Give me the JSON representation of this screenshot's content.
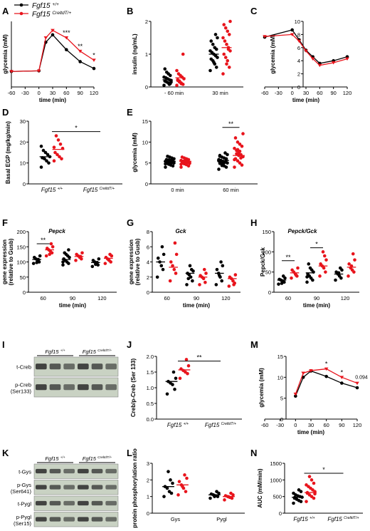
{
  "legend": [
    {
      "gene": "Fgf15",
      "sup": "+/+",
      "color": "#000000"
    },
    {
      "gene": "Fgf15",
      "sup": "CreltdT/+",
      "color": "#e8141c"
    }
  ],
  "colors": {
    "wt": "#000000",
    "ko": "#e8141c",
    "blot_bg": "#c9d2c3"
  },
  "chart_data": [
    {
      "panel": "A",
      "type": "line",
      "xlabel": "time (min)",
      "ylabel": "glycemia (mM)",
      "xlim": [
        -60,
        120
      ],
      "xticks": [
        -60,
        -30,
        0,
        30,
        60,
        90,
        120
      ],
      "yticks": [],
      "series": [
        {
          "name": "Fgf15 +/+",
          "x": [
            -60,
            0,
            15,
            30,
            60,
            90,
            120
          ],
          "y": [
            5.2,
            5.4,
            15.0,
            17.5,
            12.5,
            8.5,
            6.2
          ]
        },
        {
          "name": "Fgf15 CreltdT/+",
          "x": [
            -60,
            0,
            15,
            30,
            60,
            90,
            120
          ],
          "y": [
            5.2,
            5.4,
            16.5,
            19.0,
            16.5,
            12.0,
            9.0
          ]
        }
      ],
      "annotations": [
        {
          "x": 60,
          "text": "***"
        },
        {
          "x": 90,
          "text": "**"
        },
        {
          "x": 120,
          "text": "*"
        }
      ]
    },
    {
      "panel": "B",
      "type": "scatter",
      "ylabel": "insulin (ng/mL)",
      "ylim": [
        0,
        2
      ],
      "yticks": [
        0,
        1,
        2
      ],
      "categories": [
        "- 60 min",
        "30 min"
      ],
      "wt": [
        [
          0.05,
          0.1,
          0.12,
          0.15,
          0.18,
          0.2,
          0.22,
          0.25,
          0.28,
          0.3,
          0.35,
          0.4,
          0.45,
          0.55,
          0.15,
          0.08
        ],
        [
          0.5,
          0.6,
          0.7,
          0.8,
          0.85,
          0.9,
          0.95,
          1.0,
          1.05,
          1.1,
          1.15,
          1.2,
          1.3,
          1.4,
          1.5,
          1.6,
          0.75
        ]
      ],
      "ko": [
        [
          0.05,
          0.08,
          0.1,
          0.15,
          0.2,
          0.25,
          0.3,
          0.35,
          0.4,
          0.5,
          1.0,
          0.12,
          0.18,
          0.22
        ],
        [
          0.4,
          0.6,
          0.8,
          0.9,
          1.0,
          1.1,
          1.2,
          1.3,
          1.4,
          1.5,
          1.6,
          1.7,
          1.8,
          1.9,
          2.0,
          1.15,
          0.7
        ]
      ],
      "means": [
        [
          0.22,
          0.28
        ],
        [
          1.0,
          1.2
        ]
      ]
    },
    {
      "panel": "C",
      "type": "line",
      "xlabel": "time (min)",
      "ylabel": "glycemia (mM)",
      "xlim": [
        -60,
        120
      ],
      "ylim": [
        0,
        10
      ],
      "xticks": [
        -60,
        -30,
        0,
        30,
        60,
        90,
        120
      ],
      "yticks": [
        0,
        2,
        4,
        6,
        8,
        10
      ],
      "series": [
        {
          "name": "Fgf15 +/+",
          "x": [
            -60,
            0,
            15,
            30,
            45,
            60,
            90,
            120
          ],
          "y": [
            7.6,
            8.7,
            7.2,
            5.6,
            4.6,
            3.6,
            4.0,
            4.6
          ]
        },
        {
          "name": "Fgf15 CreltdT/+",
          "x": [
            -60,
            0,
            15,
            30,
            45,
            60,
            90,
            120
          ],
          "y": [
            7.7,
            8.0,
            7.0,
            5.5,
            4.3,
            3.3,
            3.7,
            4.3
          ]
        }
      ]
    },
    {
      "panel": "D",
      "type": "scatter",
      "ylabel": "Basal EGP (mg/kg/min)",
      "ylim": [
        0,
        30
      ],
      "yticks": [
        0,
        10,
        20,
        30
      ],
      "categories": [
        "Fgf15 +/+",
        "Fgf15 CreltdT/+"
      ],
      "wt": [
        [
          8,
          10,
          11,
          12,
          12.5,
          13,
          14,
          15,
          16,
          18
        ]
      ],
      "ko": [
        [
          11,
          12,
          13,
          14,
          15,
          17,
          19,
          21,
          23,
          17.5
        ]
      ],
      "means": [
        [
          13,
          16.5
        ]
      ],
      "annotations": [
        {
          "text": "*"
        }
      ]
    },
    {
      "panel": "E",
      "type": "scatter",
      "ylabel": "glycemia (mM)",
      "ylim": [
        0,
        15
      ],
      "yticks": [
        0,
        5,
        10,
        15
      ],
      "categories": [
        "0 min",
        "60 min"
      ],
      "wt": [
        [
          4,
          4.3,
          4.5,
          4.7,
          4.9,
          5.0,
          5.1,
          5.2,
          5.3,
          5.4,
          5.5,
          5.6,
          5.7,
          5.8,
          6.0,
          6.2,
          6.4,
          6.6,
          4.8,
          5.25,
          5.45,
          5.65,
          5.15
        ],
        [
          3.5,
          4.0,
          4.3,
          4.6,
          4.9,
          5.0,
          5.2,
          5.4,
          5.6,
          5.8,
          6.0,
          6.2,
          6.4,
          6.6,
          7.0,
          7.4,
          4.8,
          5.3,
          5.5,
          5.7,
          5.1,
          4.4,
          6.8
        ]
      ],
      "ko": [
        [
          4.0,
          4.3,
          4.6,
          4.8,
          5.0,
          5.1,
          5.2,
          5.3,
          5.4,
          5.6,
          5.8,
          6.0,
          6.2,
          6.4,
          4.9,
          5.45,
          5.65,
          5.25,
          4.7,
          5.15,
          5.55
        ],
        [
          4.0,
          4.5,
          5.0,
          5.5,
          6.0,
          6.5,
          7.0,
          7.5,
          8.0,
          8.5,
          9.0,
          9.5,
          10.0,
          11.0,
          12.0,
          6.2,
          6.8,
          7.2,
          5.8,
          6.6,
          7.8,
          8.2
        ]
      ],
      "means": [
        [
          5.4,
          5.4
        ],
        [
          5.6,
          6.8
        ]
      ],
      "annotations": [
        {
          "text": "**"
        }
      ]
    },
    {
      "panel": "F",
      "type": "scatter",
      "title": "Pepck",
      "xlabel": "time (min)",
      "ylabel": "gene expression (relative to Gusb)",
      "ylim": [
        0,
        200
      ],
      "yticks": [
        0,
        50,
        100,
        150,
        200
      ],
      "categories": [
        "60",
        "90",
        "120"
      ],
      "wt": [
        [
          95,
          100,
          105,
          110,
          115,
          120,
          108,
          98
        ],
        [
          90,
          95,
          100,
          105,
          110,
          115,
          120,
          125,
          130,
          100,
          140
        ],
        [
          85,
          90,
          95,
          100,
          105,
          110,
          98,
          92
        ]
      ],
      "ko": [
        [
          120,
          130,
          135,
          140,
          145,
          150,
          160,
          125
        ],
        [
          105,
          110,
          115,
          120,
          125,
          130,
          118
        ],
        [
          95,
          100,
          105,
          110,
          115,
          120,
          125,
          108
        ]
      ],
      "means": [
        [
          108,
          140
        ],
        [
          108,
          118
        ],
        [
          98,
          112
        ]
      ],
      "annotations": [
        {
          "text": "**"
        }
      ]
    },
    {
      "panel": "G",
      "type": "scatter",
      "title": "Gck",
      "xlabel": "time (min)",
      "ylabel": "gene expression (relative to Gusb)",
      "ylim": [
        0,
        8
      ],
      "yticks": [
        0,
        2,
        4,
        6,
        8
      ],
      "categories": [
        "60",
        "90",
        "120"
      ],
      "wt": [
        [
          2.0,
          3.0,
          3.5,
          4.0,
          4.5,
          5.0,
          6.0
        ],
        [
          1.0,
          1.5,
          2.0,
          2.3,
          2.5,
          2.8,
          3.0,
          3.5,
          1.8
        ],
        [
          1.0,
          1.5,
          2.0,
          2.5,
          3.0,
          3.5,
          4.0,
          2.2
        ]
      ],
      "ko": [
        [
          1.5,
          2.5,
          3.0,
          3.5,
          4.0,
          5.0,
          6.5
        ],
        [
          1.0,
          1.3,
          1.8,
          2.0,
          2.2,
          2.5,
          3.0
        ],
        [
          0.8,
          1.2,
          1.5,
          1.8,
          2.0,
          2.3,
          1.0
        ]
      ],
      "means": [
        [
          4.0,
          3.3
        ],
        [
          2.5,
          2.0
        ],
        [
          2.5,
          1.8
        ]
      ]
    },
    {
      "panel": "H",
      "type": "scatter",
      "title": "Pepck/Gck",
      "xlabel": "time (min)",
      "ylabel": "Pepck/Gck",
      "ylim": [
        0,
        150
      ],
      "yticks": [
        0,
        50,
        100,
        150
      ],
      "categories": [
        "60",
        "90",
        "120"
      ],
      "wt": [
        [
          20,
          25,
          28,
          30,
          32,
          35,
          40,
          22
        ],
        [
          25,
          30,
          35,
          40,
          45,
          50,
          55,
          60,
          70,
          38
        ],
        [
          30,
          35,
          40,
          45,
          50,
          55,
          60,
          48
        ]
      ],
      "ko": [
        [
          35,
          40,
          45,
          50,
          55,
          60,
          42
        ],
        [
          40,
          50,
          60,
          65,
          70,
          80,
          90,
          100
        ],
        [
          40,
          50,
          55,
          60,
          70,
          80,
          95,
          65
        ]
      ],
      "means": [
        [
          30,
          48
        ],
        [
          48,
          65
        ],
        [
          45,
          62
        ]
      ],
      "annotations": [
        {
          "text": "**"
        },
        {
          "text": "*"
        }
      ]
    },
    {
      "panel": "J",
      "type": "scatter",
      "ylabel": "Creb/p-Creb (Ser 133)",
      "ylim": [
        0,
        2
      ],
      "yticks": [
        0.0,
        0.5,
        1.0,
        1.5,
        2.0
      ],
      "categories": [
        "Fgf15 +/+",
        "Fgf15 CreltdT/+"
      ],
      "wt": [
        [
          0.8,
          0.95,
          1.1,
          1.15,
          1.2,
          1.3,
          1.5
        ]
      ],
      "ko": [
        [
          1.3,
          1.45,
          1.5,
          1.55,
          1.6,
          1.7,
          1.9
        ]
      ],
      "means": [
        [
          1.2,
          1.57
        ]
      ],
      "annotations": [
        {
          "text": "**"
        }
      ]
    },
    {
      "panel": "M",
      "type": "line",
      "xlabel": "time (min)",
      "ylabel": "glycemia (mM)",
      "xlim": [
        -60,
        120
      ],
      "ylim": [
        0,
        15
      ],
      "xticks": [
        -60,
        -30,
        0,
        30,
        60,
        90,
        120
      ],
      "yticks": [
        0,
        5,
        10,
        15
      ],
      "series": [
        {
          "name": "Fgf15 +/+",
          "x": [
            0,
            15,
            30,
            60,
            90,
            120
          ],
          "y": [
            5.5,
            10.0,
            11.5,
            10.2,
            8.6,
            7.5
          ]
        },
        {
          "name": "Fgf15 CreltdT/+",
          "x": [
            0,
            15,
            30,
            60,
            90,
            120
          ],
          "y": [
            6.0,
            11.0,
            11.6,
            12.0,
            10.0,
            8.6
          ]
        }
      ],
      "annotations": [
        {
          "x": 60,
          "text": "*"
        },
        {
          "x": 90,
          "text": "*"
        },
        {
          "x": 120,
          "text": "0.094"
        }
      ]
    },
    {
      "panel": "L",
      "type": "scatter",
      "ylabel": "protein phosphorylation ratio",
      "ylim": [
        0,
        3
      ],
      "yticks": [
        0,
        1,
        2,
        3
      ],
      "categories": [
        "Gys",
        "Pygl"
      ],
      "wt": [
        [
          1.0,
          1.2,
          1.3,
          1.5,
          1.6,
          1.8,
          2.0,
          2.5
        ],
        [
          0.9,
          1.0,
          1.05,
          1.1,
          1.15,
          1.2,
          1.3,
          1.0
        ]
      ],
      "ko": [
        [
          1.1,
          1.3,
          1.5,
          1.7,
          1.9,
          2.1,
          2.3,
          1.6
        ],
        [
          0.8,
          0.9,
          0.95,
          1.0,
          1.05,
          1.1,
          1.2,
          0.98
        ]
      ],
      "means": [
        [
          1.6,
          1.7
        ],
        [
          1.1,
          1.0
        ]
      ]
    },
    {
      "panel": "N",
      "type": "scatter",
      "ylabel": "AUC (mM/min)",
      "ylim": [
        0,
        1500
      ],
      "yticks": [
        0,
        500,
        1000,
        1500
      ],
      "categories": [
        "Fgf15 +/+",
        "Fgf15 CreltdT/+"
      ],
      "wt": [
        [
          300,
          350,
          380,
          420,
          450,
          480,
          500,
          520,
          550,
          600,
          650,
          700,
          420,
          470
        ]
      ],
      "ko": [
        [
          350,
          450,
          500,
          550,
          600,
          650,
          700,
          750,
          800,
          850,
          900,
          1000,
          1100,
          620,
          580
        ]
      ],
      "means": [
        [
          480,
          620
        ]
      ],
      "annotations": [
        {
          "text": "*"
        }
      ]
    }
  ],
  "blots": {
    "I": {
      "headers": [
        {
          "gene": "Fgf15",
          "sup": "+/+"
        },
        {
          "gene": "Fgf15",
          "sup": "CreltdT/+"
        }
      ],
      "rows": [
        {
          "label": "t-Creb"
        },
        {
          "label": "p-Creb",
          "sub": "(Ser133)"
        }
      ]
    },
    "K": {
      "headers": [
        {
          "gene": "Fgf15",
          "sup": "+/+"
        },
        {
          "gene": "Fgf15",
          "sup": "CreltdT/+"
        }
      ],
      "rows": [
        {
          "label": "t-Gys"
        },
        {
          "label": "p-Gys",
          "sub": "(Ser641)"
        },
        {
          "label": "t-Pygl"
        },
        {
          "label": "p-Pygl",
          "sub": "(Ser15)"
        }
      ]
    }
  }
}
